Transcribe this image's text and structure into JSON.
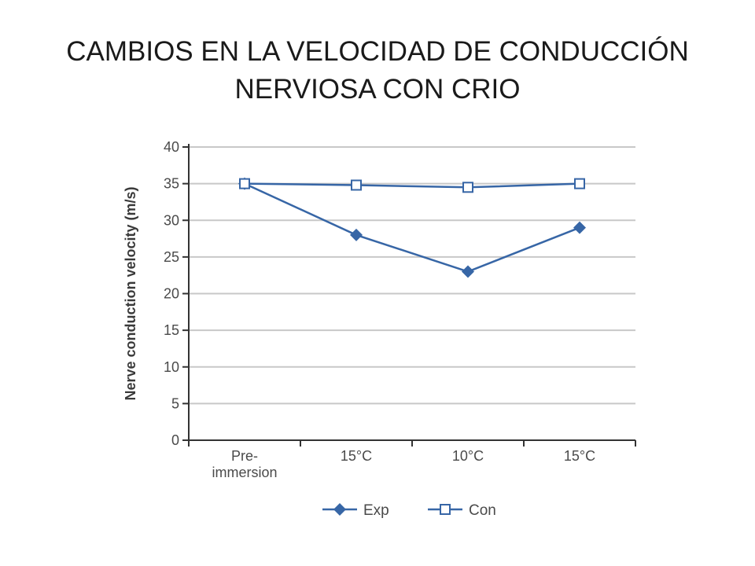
{
  "slide": {
    "title_line1": "CAMBIOS EN LA VELOCIDAD DE CONDUCCIÓN",
    "title_line2": "NERVIOSA CON CRIO"
  },
  "chart_data": {
    "type": "line",
    "title": "",
    "xlabel": "",
    "ylabel": "Nerve conduction velocity (m/s)",
    "categories": [
      [
        "Pre-",
        "immersion"
      ],
      [
        "15°C"
      ],
      [
        "10°C"
      ],
      [
        "15°C"
      ]
    ],
    "ylim": [
      0,
      40
    ],
    "yticks": [
      0,
      5,
      10,
      15,
      20,
      25,
      30,
      35,
      40
    ],
    "grid": true,
    "legend_position": "bottom",
    "series": [
      {
        "name": "Exp",
        "marker": "filled-diamond",
        "values": [
          35,
          28,
          23,
          29
        ]
      },
      {
        "name": "Con",
        "marker": "open-square",
        "values": [
          35,
          34.8,
          34.5,
          35
        ]
      }
    ],
    "colors": {
      "line": "#3766a6",
      "grid": "#c8c8c8",
      "axis": "#333333",
      "text": "#4a4a4a"
    }
  }
}
